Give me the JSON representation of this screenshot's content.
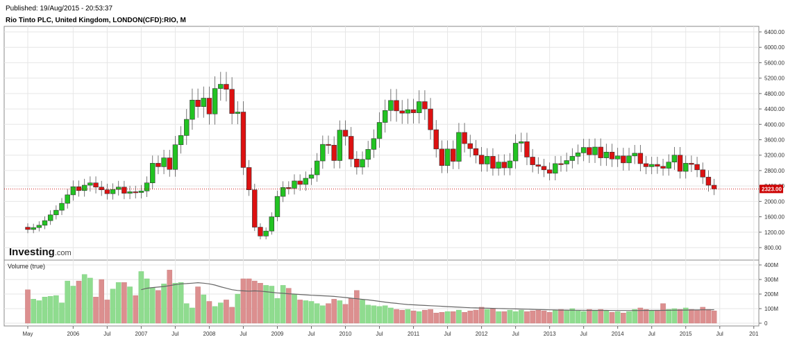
{
  "header": {
    "published": "Published: 19/Aug/2015 - 20:53:37",
    "symbol": "Rio Tinto PLC, United Kingdom, LONDON(CFD):RIO, M"
  },
  "brand": {
    "name": "Investing",
    "suffix": ".com"
  },
  "colors": {
    "up": "#22c322",
    "down": "#dd1111",
    "vol_up": "#8fdc8f",
    "vol_down": "#dc8f8f",
    "ma": "#666666",
    "last_price": "#cc0000",
    "grid": "#e6e6e6"
  },
  "chart_data": [
    {
      "type": "candlestick",
      "title": "Rio Tinto PLC, United Kingdom, LONDON(CFD):RIO, M",
      "interval": "M",
      "start": "2005-05",
      "ylim": [
        600,
        6600
      ],
      "yticks": [
        800,
        1200,
        1600,
        2000,
        2400,
        2800,
        3200,
        3600,
        4000,
        4400,
        4800,
        5200,
        5600,
        6000,
        6400
      ],
      "ytick_labels": [
        "800.00",
        "1200.00",
        "1600.00",
        "2000.00",
        "2400.00",
        "2800.00",
        "3200.00",
        "3600.00",
        "4000.00",
        "4400.00",
        "4800.00",
        "5200.00",
        "5600.00",
        "6000.00",
        "6400.00"
      ],
      "last_price": 2323,
      "last_price_label": "2323.00",
      "xtick_labels": [
        "May",
        "2006",
        "Jul",
        "2007",
        "Jul",
        "2008",
        "Jul",
        "2009",
        "Jul",
        "2010",
        "Jul",
        "2011",
        "Jul",
        "2012",
        "Jul",
        "2013",
        "Jul",
        "2014",
        "Jul",
        "2015",
        "Jul",
        "201"
      ],
      "xtick_months": [
        0,
        8,
        14,
        20,
        26,
        32,
        38,
        44,
        50,
        56,
        62,
        68,
        74,
        80,
        86,
        92,
        98,
        104,
        110,
        116,
        122,
        128
      ],
      "grid": true,
      "close": [
        1270,
        1320,
        1380,
        1500,
        1650,
        1770,
        1950,
        2170,
        2380,
        2280,
        2420,
        2480,
        2370,
        2300,
        2200,
        2310,
        2370,
        2210,
        2250,
        2230,
        2270,
        2480,
        2990,
        2900,
        3130,
        2830,
        3470,
        3710,
        4130,
        4630,
        4460,
        4680,
        4270,
        4930,
        5040,
        4910,
        4280,
        4320,
        2880,
        2300,
        1330,
        1100,
        1230,
        1600,
        2130,
        2360,
        2340,
        2530,
        2440,
        2600,
        2690,
        3050,
        3480,
        3460,
        3060,
        3850,
        3690,
        3100,
        2890,
        3090,
        3350,
        3630,
        4050,
        4360,
        4620,
        4350,
        4290,
        4380,
        4300,
        4590,
        4400,
        3860,
        3360,
        2930,
        3360,
        3040,
        3790,
        3500,
        3370,
        3200,
        2970,
        3170,
        2860,
        3020,
        2870,
        3050,
        3510,
        3550,
        3150,
        2950,
        2910,
        2820,
        2730,
        2980,
        2970,
        3060,
        3170,
        3260,
        3400,
        3210,
        3410,
        3130,
        3280,
        3100,
        3180,
        3000,
        3180,
        3250,
        2980,
        2900,
        2960,
        2910,
        2860,
        3020,
        3200,
        2780,
        2990,
        2960,
        2820,
        2630,
        2420,
        2323
      ],
      "volume_series_name": "Volume (true)",
      "volume_ylim": [
        0,
        400
      ],
      "volume_yticks": [
        0,
        100,
        200,
        300,
        400
      ],
      "volume_ytick_labels": [
        "0",
        "100M",
        "200M",
        "300M",
        "400M"
      ],
      "volume": [
        230,
        165,
        155,
        180,
        185,
        190,
        140,
        290,
        255,
        290,
        335,
        310,
        180,
        300,
        160,
        235,
        280,
        280,
        250,
        190,
        355,
        305,
        245,
        225,
        270,
        365,
        275,
        280,
        135,
        105,
        250,
        195,
        150,
        115,
        140,
        160,
        110,
        200,
        305,
        305,
        290,
        275,
        260,
        255,
        170,
        260,
        240,
        200,
        160,
        155,
        150,
        135,
        120,
        135,
        165,
        155,
        130,
        170,
        225,
        160,
        125,
        120,
        115,
        120,
        105,
        95,
        90,
        95,
        85,
        80,
        90,
        95,
        70,
        75,
        80,
        80,
        90,
        75,
        85,
        90,
        110,
        95,
        100,
        80,
        80,
        90,
        80,
        90,
        80,
        85,
        90,
        85,
        75,
        90,
        95,
        90,
        100,
        85,
        80,
        95,
        90,
        95,
        85,
        75,
        80,
        70,
        80,
        95,
        105,
        95,
        85,
        90,
        135,
        95,
        100,
        95,
        105,
        95,
        90,
        110,
        95,
        85
      ],
      "volume_ma": [
        null,
        null,
        null,
        null,
        null,
        null,
        null,
        null,
        null,
        null,
        null,
        null,
        null,
        null,
        null,
        null,
        null,
        null,
        null,
        null,
        230,
        240,
        245,
        248,
        252,
        258,
        265,
        270,
        272,
        275,
        278,
        275,
        270,
        262,
        250,
        240,
        230,
        225,
        222,
        220,
        222,
        220,
        216,
        212,
        208,
        205,
        202,
        200,
        197,
        195,
        192,
        190,
        188,
        186,
        184,
        180,
        176,
        172,
        168,
        164,
        160,
        155,
        150,
        145,
        140,
        136,
        132,
        128,
        126,
        124,
        122,
        120,
        118,
        116,
        114,
        112,
        110,
        108,
        106,
        105,
        104,
        103,
        102,
        101,
        100,
        99,
        98,
        97,
        96,
        95,
        94,
        93,
        92,
        91,
        90,
        90,
        89,
        89,
        88,
        88,
        88,
        88,
        88,
        87,
        87,
        87,
        87,
        87,
        87,
        88,
        88,
        88,
        88,
        89,
        89,
        90,
        90,
        91,
        91,
        92,
        92,
        93
      ]
    }
  ]
}
